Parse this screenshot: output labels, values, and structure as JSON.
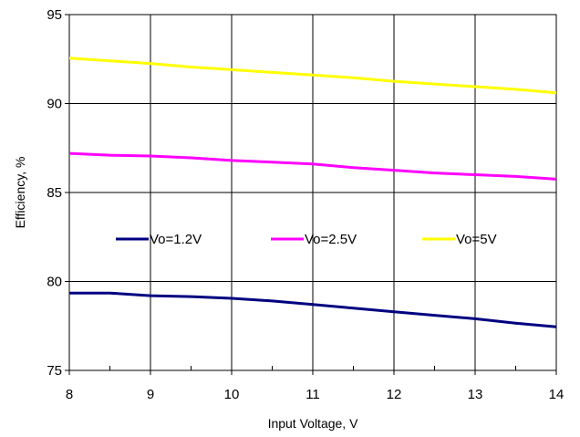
{
  "chart_data": {
    "type": "line",
    "xlabel": "Input Voltage, V",
    "ylabel": "Efficiency, %",
    "xlim": [
      8,
      14
    ],
    "ylim": [
      75,
      95
    ],
    "x_ticks": [
      "8",
      "9",
      "10",
      "11",
      "12",
      "13",
      "14"
    ],
    "y_ticks": [
      "75",
      "80",
      "85",
      "90",
      "95"
    ],
    "grid": {
      "major_x": true,
      "major_y": true
    },
    "legend_position": "center",
    "series": [
      {
        "name": "Vo=1.2V",
        "color": "#000080",
        "x": [
          8,
          8.5,
          9,
          9.5,
          10,
          10.5,
          11,
          11.5,
          12,
          12.5,
          13,
          13.5,
          14
        ],
        "y": [
          79.35,
          79.35,
          79.2,
          79.15,
          79.05,
          78.9,
          78.7,
          78.5,
          78.3,
          78.1,
          77.9,
          77.65,
          77.45
        ]
      },
      {
        "name": "Vo=2.5V",
        "color": "#ff00ff",
        "x": [
          8,
          8.5,
          9,
          9.5,
          10,
          10.5,
          11,
          11.5,
          12,
          12.5,
          13,
          13.5,
          14
        ],
        "y": [
          87.2,
          87.1,
          87.05,
          86.95,
          86.8,
          86.7,
          86.6,
          86.4,
          86.25,
          86.1,
          86.0,
          85.9,
          85.75
        ]
      },
      {
        "name": "Vo=5V",
        "color": "#ffff00",
        "x": [
          8,
          8.5,
          9,
          9.5,
          10,
          10.5,
          11,
          11.5,
          12,
          12.5,
          13,
          13.5,
          14
        ],
        "y": [
          92.55,
          92.4,
          92.25,
          92.05,
          91.9,
          91.75,
          91.6,
          91.45,
          91.25,
          91.1,
          90.95,
          90.8,
          90.6
        ]
      }
    ]
  }
}
